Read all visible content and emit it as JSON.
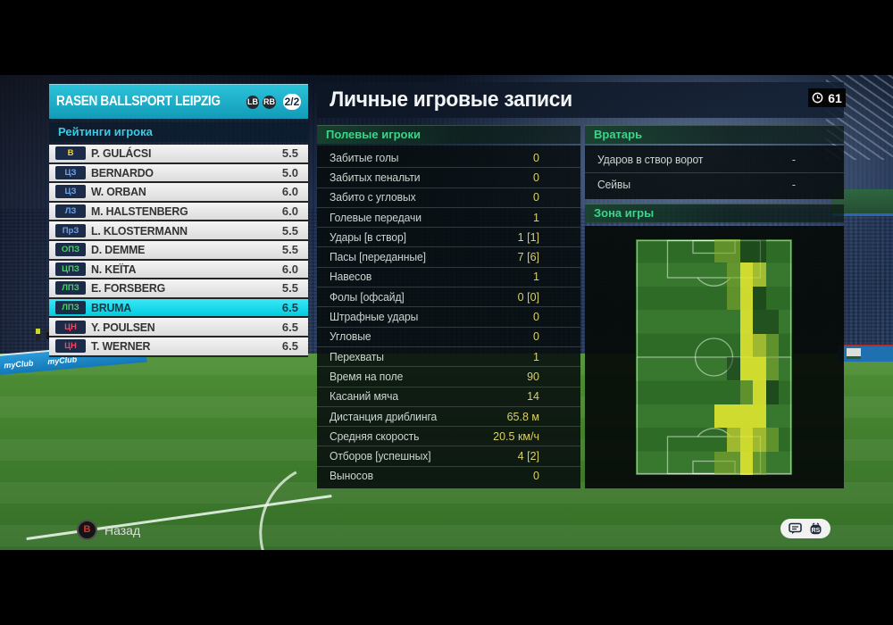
{
  "colors": {
    "accent_teal": "#17aecb",
    "selected_row": "#10dff2",
    "section_green": "#3ed38b",
    "ratings_cyan": "#3cc9e4",
    "value_yellow": "#d8d06a",
    "pos_gk": "#f0d43c",
    "pos_def": "#6ba2ec",
    "pos_mid": "#46d163",
    "pos_fwd": "#ea4a64"
  },
  "header": {
    "team_name": "RASEN BALLSPORT LEIPZIG",
    "prev_button": "LB",
    "next_button": "RB",
    "page_indicator": "2/2",
    "title": "Личные игровые записи",
    "match_minute": "61"
  },
  "ratings": {
    "label": "Рейтинги игрока",
    "players": [
      {
        "pos": "В",
        "pos_color": "#f0d43c",
        "name": "P. GULÁCSI",
        "rating": "5.5",
        "selected": false
      },
      {
        "pos": "ЦЗ",
        "pos_color": "#6ba2ec",
        "name": "BERNARDO",
        "rating": "5.0",
        "selected": false
      },
      {
        "pos": "ЦЗ",
        "pos_color": "#6ba2ec",
        "name": "W. ORBAN",
        "rating": "6.0",
        "selected": false
      },
      {
        "pos": "ЛЗ",
        "pos_color": "#6ba2ec",
        "name": "M. HALSTENBERG",
        "rating": "6.0",
        "selected": false
      },
      {
        "pos": "ПрЗ",
        "pos_color": "#6ba2ec",
        "name": "L. KLOSTERMANN",
        "rating": "5.5",
        "selected": false
      },
      {
        "pos": "ОПЗ",
        "pos_color": "#46d163",
        "name": "D. DEMME",
        "rating": "5.5",
        "selected": false
      },
      {
        "pos": "ЦПЗ",
        "pos_color": "#46d163",
        "name": "N. KEÏTA",
        "rating": "6.0",
        "selected": false
      },
      {
        "pos": "ЛПЗ",
        "pos_color": "#46d163",
        "name": "E. FORSBERG",
        "rating": "5.5",
        "selected": false
      },
      {
        "pos": "ЛПЗ",
        "pos_color": "#46d163",
        "name": "BRUMA",
        "rating": "6.5",
        "selected": true
      },
      {
        "pos": "ЦН",
        "pos_color": "#ea4a64",
        "name": "Y. POULSEN",
        "rating": "6.5",
        "selected": false
      },
      {
        "pos": "ЦН",
        "pos_color": "#ea4a64",
        "name": "T. WERNER",
        "rating": "6.5",
        "selected": false
      }
    ]
  },
  "field_players": {
    "label": "Полевые игроки",
    "stats": [
      {
        "label": "Забитые голы",
        "value": "0"
      },
      {
        "label": "Забитых пенальти",
        "value": "0"
      },
      {
        "label": "Забито с угловых",
        "value": "0"
      },
      {
        "label": "Голевые передачи",
        "value": "1"
      },
      {
        "label": "Удары [в створ]",
        "value": "1 [1]"
      },
      {
        "label": "Пасы [переданные]",
        "value": "7 [6]"
      },
      {
        "label": "Навесов",
        "value": "1"
      },
      {
        "label": "Фолы [офсайд]",
        "value": "0 [0]"
      },
      {
        "label": "Штрафные удары",
        "value": "0"
      },
      {
        "label": "Угловые",
        "value": "0"
      },
      {
        "label": "Перехваты",
        "value": "1"
      },
      {
        "label": "Время на поле",
        "value": "90"
      },
      {
        "label": "Касаний мяча",
        "value": "14"
      },
      {
        "label": "Дистанция дриблинга",
        "value": "65.8 м"
      },
      {
        "label": "Средняя скорость",
        "value": "20.5 км/ч"
      },
      {
        "label": "Отборов [успешных]",
        "value": "4 [2]"
      },
      {
        "label": "Выносов",
        "value": "0"
      }
    ]
  },
  "goalkeeper": {
    "label": "Вратарь",
    "stats": [
      {
        "label": "Ударов в створ ворот",
        "value": "-"
      },
      {
        "label": "Сейвы",
        "value": "-"
      }
    ]
  },
  "zone": {
    "label": "Зона игры",
    "heatmap": {
      "cols": 12,
      "rows": 10,
      "level_colors": [
        "transparent",
        "rgba(12,44,16,0.50)",
        "rgba(130,170,45,0.60)",
        "rgba(196,210,52,0.75)",
        "rgba(228,232,48,0.88)"
      ],
      "cells": [
        [
          0,
          0,
          0,
          0,
          0,
          0,
          2,
          2,
          1,
          1,
          0,
          0
        ],
        [
          0,
          0,
          0,
          0,
          0,
          0,
          0,
          2,
          4,
          3,
          0,
          0
        ],
        [
          0,
          0,
          0,
          0,
          0,
          0,
          0,
          2,
          4,
          1,
          0,
          0
        ],
        [
          0,
          0,
          0,
          0,
          0,
          0,
          0,
          0,
          4,
          1,
          1,
          0
        ],
        [
          0,
          0,
          0,
          0,
          0,
          0,
          0,
          0,
          4,
          3,
          2,
          0
        ],
        [
          0,
          0,
          0,
          0,
          0,
          0,
          0,
          1,
          4,
          4,
          2,
          0
        ],
        [
          0,
          0,
          0,
          0,
          0,
          0,
          0,
          0,
          2,
          4,
          1,
          0
        ],
        [
          0,
          0,
          0,
          0,
          0,
          0,
          4,
          4,
          4,
          4,
          0,
          0
        ],
        [
          0,
          0,
          0,
          0,
          0,
          0,
          0,
          3,
          4,
          3,
          2,
          0
        ],
        [
          0,
          0,
          0,
          0,
          0,
          0,
          2,
          2,
          4,
          2,
          0,
          0
        ]
      ]
    }
  },
  "footer": {
    "back_glyph": "B",
    "back_label": "Назад",
    "right_stick_label": "RS"
  },
  "background": {
    "boards": [
      "myClub",
      "myClub"
    ]
  }
}
